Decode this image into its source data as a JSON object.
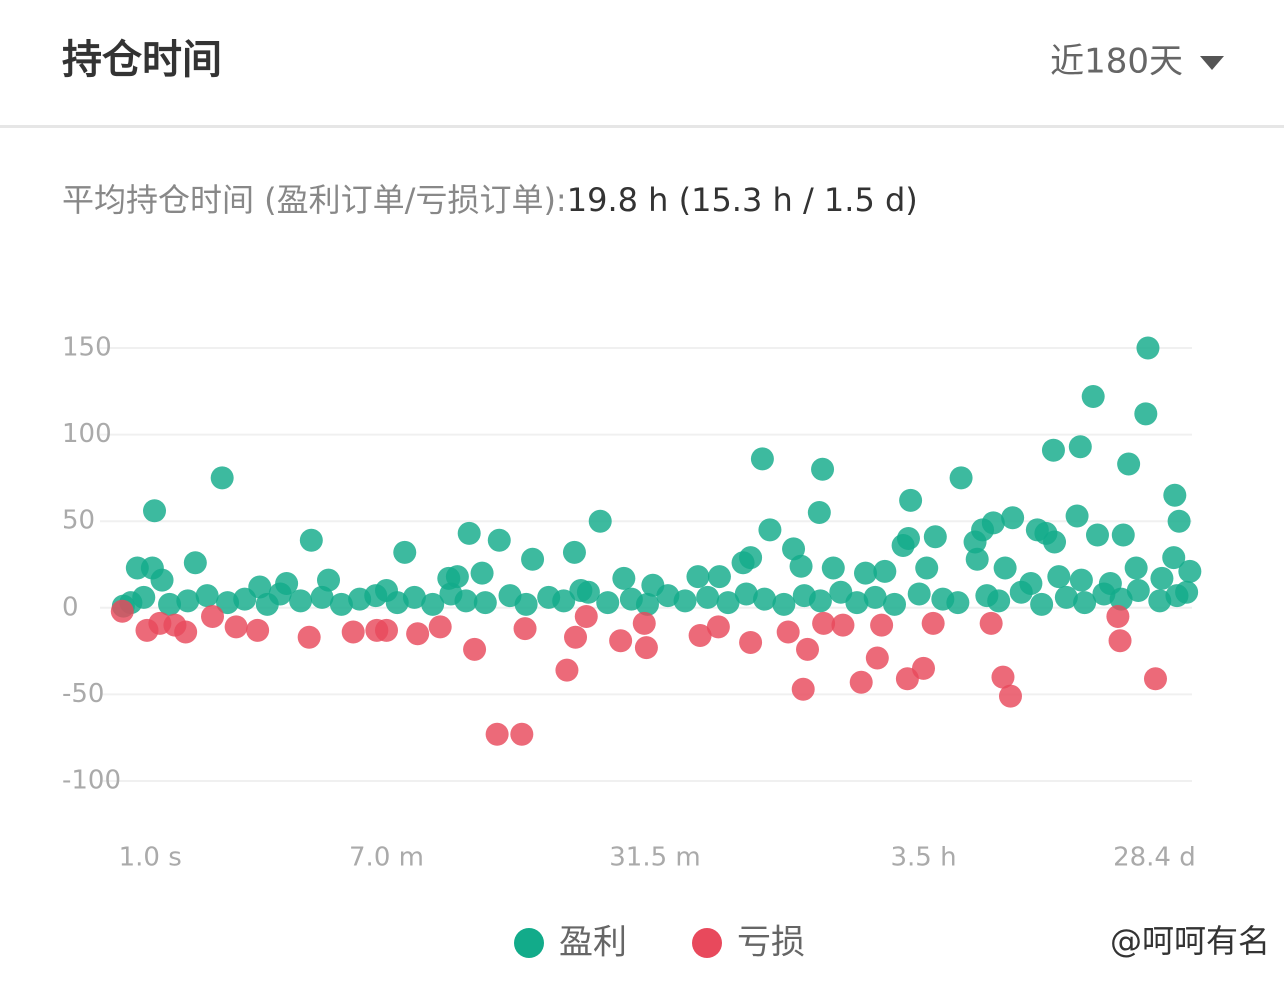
{
  "header": {
    "title": "持仓时间",
    "range_selector": "近180天"
  },
  "summary": {
    "label": "平均持仓时间 (盈利订单/亏损订单):",
    "value": "19.8 h (15.3 h / 1.5 d)"
  },
  "watermark": "@呵呵有名",
  "chart_data": {
    "type": "scatter",
    "xlim": [
      0,
      100
    ],
    "xticks": [
      {
        "value": 3,
        "label": "1.0 s"
      },
      {
        "value": 25,
        "label": "7.0 m"
      },
      {
        "value": 50,
        "label": "31.5 m"
      },
      {
        "value": 75,
        "label": "3.5 h"
      },
      {
        "value": 96.5,
        "label": "28.4 d"
      }
    ],
    "ylim": [
      -100,
      150
    ],
    "yticks": [
      -100,
      -50,
      0,
      50,
      100,
      150
    ],
    "grid": true,
    "series": [
      {
        "name": "盈利",
        "color": "#12ab8a",
        "x": [
          9.7,
          3.4,
          7.2,
          1.8,
          3.2,
          4.1,
          18,
          19.6,
          26.7,
          32.7,
          35.5,
          33.9,
          30.8,
          31.6,
          38.6,
          42.5,
          44.9,
          60,
          60.7,
          58.9,
          58.2,
          62.9,
          63.6,
          65.6,
          65.3,
          66.6,
          73.8,
          73.6,
          73.1,
          76.1,
          75.3,
          78.5,
          81.5,
          83.3,
          80.5,
          79.8,
          80,
          82.6,
          85.6,
          87.1,
          86.4,
          87.2,
          87.6,
          89.6,
          90.8,
          89.3,
          91.2,
          93.6,
          94.1,
          95.9,
          95.7,
          98.4,
          98.8,
          94.8,
          98.3,
          99.8,
          97.2,
          92.4,
          89.7,
          85,
          69.6,
          71.4,
          54,
          56,
          47.1,
          49.8,
          43.1,
          25,
          13.2,
          15.7,
          0.5,
          1.2,
          2.4,
          4.8,
          6.5,
          8.3,
          10.2,
          11.8,
          13.9,
          15.1,
          17,
          19,
          20.8,
          22.5,
          24,
          26,
          27.6,
          29.3,
          31,
          32.4,
          34.2,
          36.5,
          38,
          40.1,
          41.5,
          43.8,
          45.6,
          47.8,
          49.3,
          51.2,
          52.8,
          54.9,
          56.8,
          58.5,
          60.2,
          62,
          63.9,
          65.4,
          67.3,
          68.8,
          70.5,
          72.3,
          74.6,
          76.8,
          78.2,
          80.9,
          82,
          84.1,
          86,
          88.3,
          90,
          91.8,
          93.4,
          95,
          97,
          98.6,
          99.5
        ],
        "values": [
          75,
          56,
          26,
          23,
          23,
          16,
          39,
          16,
          32,
          43,
          39,
          20,
          17,
          18,
          28,
          32,
          50,
          86,
          45,
          29,
          26,
          34,
          24,
          80,
          55,
          23,
          62,
          40,
          36,
          41,
          23,
          75,
          49,
          52,
          45,
          38,
          28,
          23,
          45,
          91,
          43,
          38,
          18,
          93,
          122,
          53,
          42,
          42,
          83,
          150,
          112,
          65,
          50,
          23,
          29,
          21,
          17,
          14,
          16,
          14,
          20,
          21,
          18,
          18,
          17,
          13,
          10,
          10,
          12,
          14,
          1,
          3,
          6,
          2,
          4,
          7,
          3,
          5,
          2,
          8,
          4,
          6,
          2,
          5,
          7,
          3,
          6,
          2,
          8,
          4,
          3,
          7,
          2,
          6,
          4,
          9,
          3,
          5,
          2,
          7,
          4,
          6,
          3,
          8,
          5,
          2,
          7,
          4,
          9,
          3,
          6,
          2,
          8,
          5,
          3,
          7,
          4,
          9,
          2,
          6,
          3,
          8,
          5,
          10,
          4,
          7,
          9
        ]
      },
      {
        "name": "亏损",
        "color": "#e8495c",
        "x": [
          0.4,
          2.7,
          3.9,
          6.3,
          5.3,
          8.8,
          11,
          13,
          17.8,
          21.9,
          24.1,
          25,
          27.9,
          30,
          33.2,
          35.3,
          37.6,
          37.9,
          41.8,
          42.6,
          43.6,
          46.8,
          49.2,
          49,
          54.2,
          55.9,
          58.9,
          62.4,
          63.8,
          64.2,
          65.7,
          67.5,
          69.2,
          70.7,
          71.1,
          73.5,
          75,
          75.9,
          81.3,
          82.4,
          83.1,
          93.1,
          93.3,
          96.6
        ],
        "values": [
          -2,
          -13,
          -9,
          -14,
          -10,
          -5,
          -11,
          -13,
          -17,
          -14,
          -13,
          -13,
          -15,
          -11,
          -24,
          -73,
          -73,
          -12,
          -36,
          -17,
          -5,
          -19,
          -23,
          -9,
          -16,
          -11,
          -20,
          -14,
          -47,
          -24,
          -9,
          -10,
          -43,
          -29,
          -10,
          -41,
          -35,
          -9,
          -9,
          -40,
          -51,
          -5,
          -19,
          -41
        ]
      }
    ]
  }
}
